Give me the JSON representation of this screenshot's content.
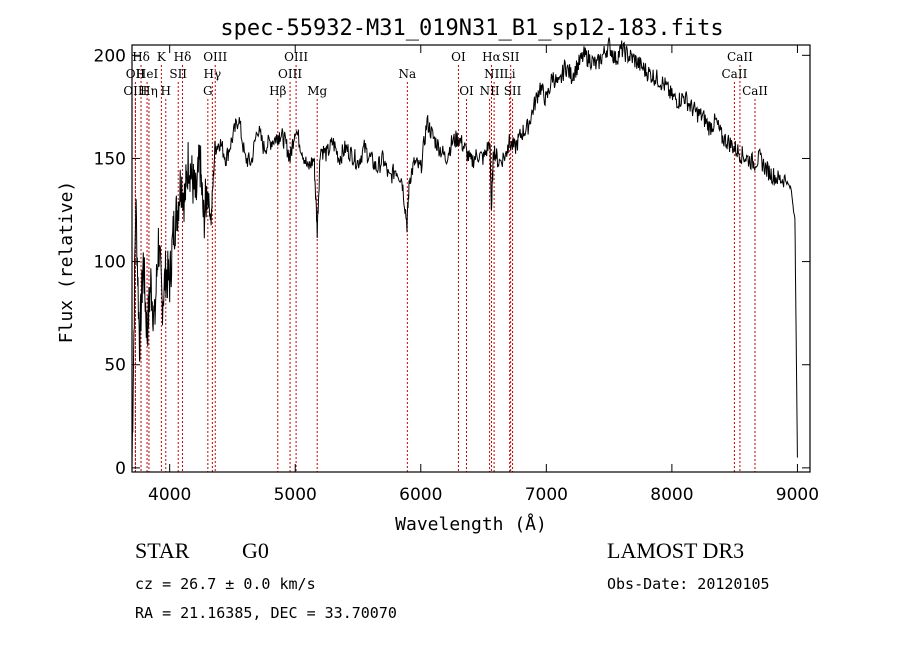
{
  "chart_data": {
    "type": "line",
    "title": "spec-55932-M31_019N31_B1_sp12-183.fits",
    "xlabel": "Wavelength (Å)",
    "ylabel": "Flux (relative)",
    "xlim": [
      3700,
      9100
    ],
    "ylim": [
      -2,
      205
    ],
    "xticks": [
      4000,
      5000,
      6000,
      7000,
      8000,
      9000
    ],
    "yticks": [
      0,
      50,
      100,
      150,
      200
    ],
    "series": [
      {
        "name": "spectrum",
        "x": [
          3700,
          3730,
          3760,
          3790,
          3820,
          3850,
          3880,
          3910,
          3940,
          3970,
          4000,
          4030,
          4060,
          4090,
          4120,
          4150,
          4180,
          4210,
          4240,
          4270,
          4300,
          4330,
          4360,
          4400,
          4450,
          4500,
          4550,
          4600,
          4650,
          4700,
          4750,
          4800,
          4850,
          4880,
          4920,
          4960,
          5000,
          5050,
          5100,
          5150,
          5175,
          5200,
          5250,
          5300,
          5350,
          5400,
          5450,
          5500,
          5550,
          5600,
          5650,
          5700,
          5750,
          5800,
          5850,
          5890,
          5910,
          5950,
          6000,
          6050,
          6100,
          6150,
          6200,
          6250,
          6300,
          6350,
          6400,
          6450,
          6500,
          6550,
          6563,
          6580,
          6620,
          6680,
          6700,
          6750,
          6800,
          6850,
          6900,
          6950,
          7000,
          7050,
          7100,
          7150,
          7200,
          7250,
          7300,
          7350,
          7400,
          7450,
          7500,
          7550,
          7600,
          7650,
          7700,
          7750,
          7800,
          7850,
          7900,
          7950,
          8000,
          8050,
          8100,
          8150,
          8200,
          8250,
          8300,
          8350,
          8400,
          8450,
          8500,
          8550,
          8600,
          8650,
          8700,
          8750,
          8800,
          8850,
          8900,
          8950,
          8980,
          9000
        ],
        "values": [
          2,
          130,
          60,
          100,
          65,
          90,
          70,
          110,
          80,
          95,
          90,
          115,
          125,
          140,
          130,
          150,
          140,
          130,
          150,
          120,
          135,
          120,
          155,
          158,
          150,
          160,
          170,
          150,
          148,
          165,
          155,
          158,
          160,
          162,
          158,
          150,
          165,
          155,
          145,
          150,
          115,
          155,
          152,
          158,
          150,
          155,
          152,
          148,
          155,
          150,
          145,
          150,
          140,
          145,
          140,
          118,
          140,
          148,
          145,
          168,
          160,
          155,
          150,
          158,
          160,
          155,
          148,
          152,
          150,
          158,
          125,
          155,
          148,
          152,
          158,
          155,
          162,
          165,
          175,
          185,
          178,
          190,
          185,
          195,
          190,
          195,
          200,
          198,
          195,
          200,
          205,
          198,
          203,
          200,
          198,
          195,
          192,
          190,
          188,
          185,
          180,
          178,
          180,
          175,
          172,
          170,
          165,
          168,
          160,
          158,
          155,
          152,
          150,
          148,
          150,
          145,
          142,
          140,
          140,
          135,
          120,
          5
        ]
      }
    ],
    "line_markers": {
      "top": [
        {
          "label": "Hδ",
          "x": 3772
        },
        {
          "label": "K",
          "x": 3934
        },
        {
          "label": "Hδ",
          "x": 4102
        },
        {
          "label": "OIII",
          "x": 4363
        },
        {
          "label": "OIII",
          "x": 5007
        },
        {
          "label": "OI",
          "x": 6300
        },
        {
          "label": "Hα",
          "x": 6563
        },
        {
          "label": "SII",
          "x": 6716
        },
        {
          "label": "CaII",
          "x": 8542
        }
      ],
      "middle": [
        {
          "label": "OII",
          "x": 3727
        },
        {
          "label": "HeI",
          "x": 3820
        },
        {
          "label": "SII",
          "x": 4068
        },
        {
          "label": "Hγ",
          "x": 4340
        },
        {
          "label": "OIII",
          "x": 4959
        },
        {
          "label": "Na",
          "x": 5893
        },
        {
          "label": "NII",
          "x": 6584
        },
        {
          "label": "Li",
          "x": 6708
        },
        {
          "label": "CaII",
          "x": 8498
        }
      ],
      "bottom": [
        {
          "label": "OIII",
          "x": 3727
        },
        {
          "label": "Hη",
          "x": 3835
        },
        {
          "label": "H",
          "x": 3969
        },
        {
          "label": "G",
          "x": 4304
        },
        {
          "label": "Hβ",
          "x": 4861
        },
        {
          "label": "Mg",
          "x": 5175
        },
        {
          "label": "OI",
          "x": 6364
        },
        {
          "label": "NII",
          "x": 6548
        },
        {
          "label": "SII",
          "x": 6731
        },
        {
          "label": "CaII",
          "x": 8662
        }
      ],
      "color": "#cc0000"
    },
    "grid": false
  },
  "info": {
    "class": "STAR",
    "subclass": "G0",
    "survey": "LAMOST DR3",
    "cz": "cz = 26.7 ± 0.0 km/s",
    "obs_date": "Obs-Date: 20120105",
    "coords": "RA =  21.16385, DEC =  33.70070"
  }
}
